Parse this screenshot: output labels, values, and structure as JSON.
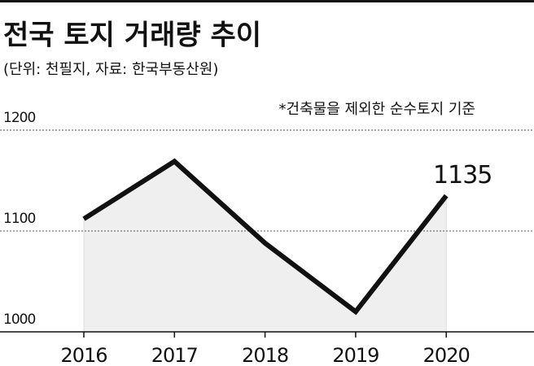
{
  "chart_data": {
    "type": "line",
    "title": "전국 토지 거래량 추이",
    "subtitle": "(단위: 천필지, 자료: 한국부동산원)",
    "annotation": "*건축물을 제외한 순수토지 기준",
    "categories": [
      "2016",
      "2017",
      "2018",
      "2019",
      "2020"
    ],
    "values": [
      1112,
      1169,
      1088,
      1020,
      1135
    ],
    "color": "#111111",
    "area_color": "#efefef",
    "ylim": [
      1000,
      1200
    ],
    "yticks": [
      1000,
      1100,
      1200
    ],
    "grid": true,
    "labeled_point": 4
  }
}
